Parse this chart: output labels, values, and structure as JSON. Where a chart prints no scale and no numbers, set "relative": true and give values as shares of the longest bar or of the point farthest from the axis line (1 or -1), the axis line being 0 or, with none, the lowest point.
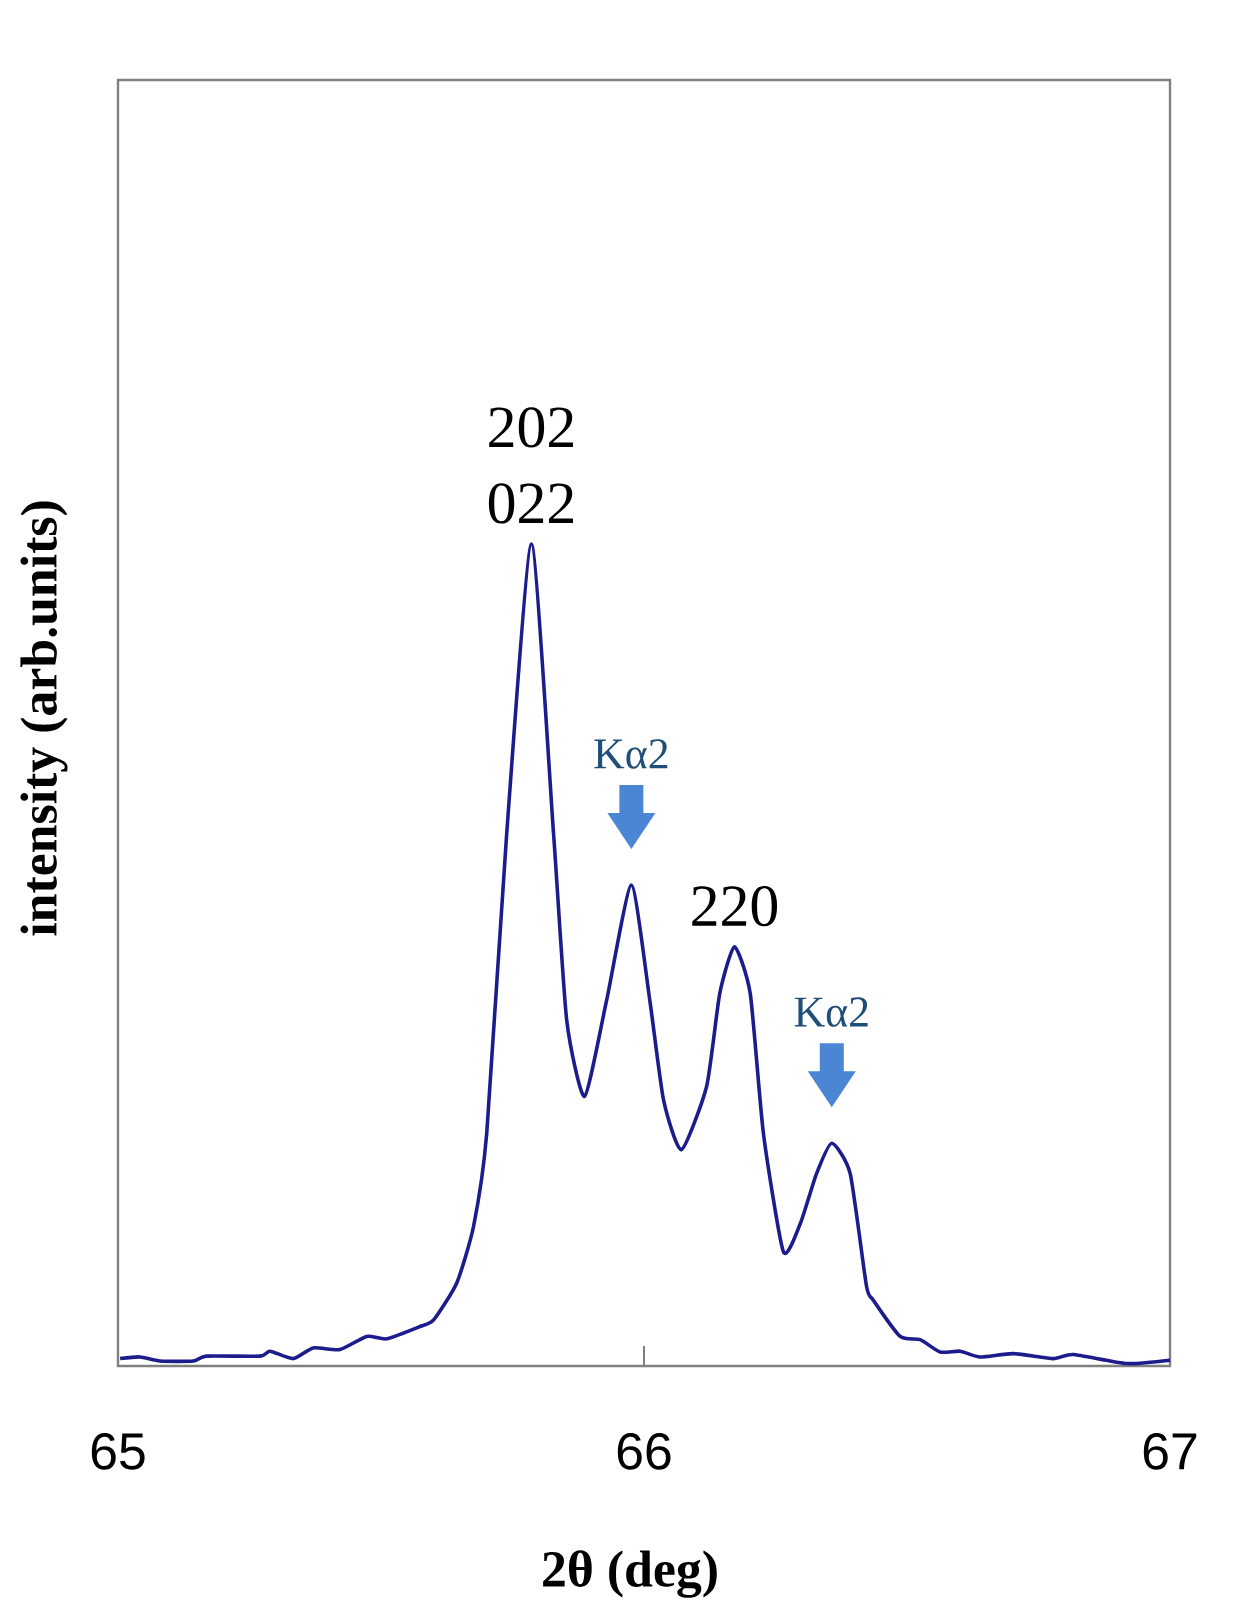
{
  "chart_data": {
    "type": "line",
    "relative": true,
    "xlabel": "2θ (deg)",
    "ylabel": "intensity  (arb.units)",
    "xlim": [
      65,
      67
    ],
    "xticks": [
      65,
      66,
      67
    ],
    "marker": "none",
    "line_style": "solid",
    "grid": false,
    "series": [
      {
        "color": "#1c1c8c",
        "x": [
          65.004,
          65.042,
          65.08,
          65.143,
          65.168,
          65.27,
          65.289,
          65.333,
          65.371,
          65.422,
          65.473,
          65.511,
          65.574,
          65.6,
          65.644,
          65.676,
          65.701,
          65.739,
          65.786,
          65.828,
          65.853,
          65.887,
          65.929,
          65.976,
          66.011,
          66.037,
          66.071,
          66.119,
          66.144,
          66.172,
          66.202,
          66.227,
          66.265,
          66.297,
          66.328,
          66.357,
          66.392,
          66.423,
          66.436,
          66.487,
          66.525,
          66.563,
          66.601,
          66.639,
          66.702,
          66.778,
          66.816,
          66.918,
          67.0
        ],
        "values": [
          0.009,
          0.011,
          0.006,
          0.006,
          0.012,
          0.012,
          0.018,
          0.009,
          0.022,
          0.02,
          0.036,
          0.033,
          0.048,
          0.056,
          0.101,
          0.17,
          0.283,
          0.648,
          1.0,
          0.648,
          0.421,
          0.328,
          0.445,
          0.585,
          0.445,
          0.324,
          0.263,
          0.34,
          0.453,
          0.51,
          0.453,
          0.283,
          0.139,
          0.173,
          0.234,
          0.271,
          0.234,
          0.097,
          0.08,
          0.036,
          0.032,
          0.017,
          0.018,
          0.011,
          0.015,
          0.009,
          0.014,
          0.003,
          0.007
        ]
      }
    ],
    "annotations": [
      {
        "text": "202",
        "x": 65.786,
        "y": 1.0
      },
      {
        "text": "022",
        "x": 65.786,
        "y": 1.0
      },
      {
        "text": "Kα2",
        "x": 65.976,
        "y": 0.585
      },
      {
        "text": "220",
        "x": 66.172,
        "y": 0.51
      },
      {
        "text": "Kα2",
        "x": 66.357,
        "y": 0.271
      }
    ]
  }
}
